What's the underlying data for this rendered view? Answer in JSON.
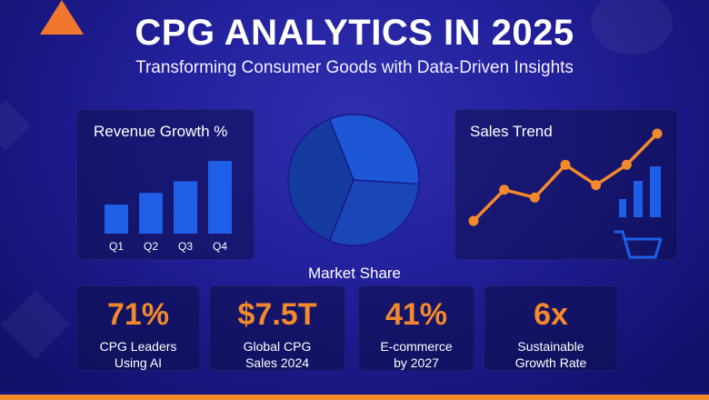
{
  "header": {
    "title": "CPG ANALYTICS IN 2025",
    "subtitle": "Transforming Consumer Goods with Data-Driven Insights"
  },
  "colors": {
    "accent": "#f4892c",
    "bar": "#1f5fe8",
    "background": "#1d1b8f"
  },
  "revenue_chart": {
    "title": "Revenue Growth %",
    "categories": [
      "Q1",
      "Q2",
      "Q3",
      "Q4"
    ],
    "values": [
      1.0,
      1.4,
      1.8,
      2.5
    ]
  },
  "sales_chart": {
    "title": "Sales Trend",
    "points": [
      1,
      3,
      2.5,
      4.6,
      3.3,
      4.6,
      6.6
    ],
    "icons": [
      "bar-chart-icon",
      "shopping-cart-icon"
    ]
  },
  "market_share": {
    "label": "Market Share",
    "slices": [
      0.32,
      0.3,
      0.38
    ]
  },
  "stats": [
    {
      "value": "71%",
      "label": "CPG Leaders\nUsing AI"
    },
    {
      "value": "$7.5T",
      "label": "Global CPG\nSales 2024"
    },
    {
      "value": "41%",
      "label": "E-commerce\nby 2027"
    },
    {
      "value": "6x",
      "label": "Sustainable\nGrowth Rate"
    }
  ]
}
